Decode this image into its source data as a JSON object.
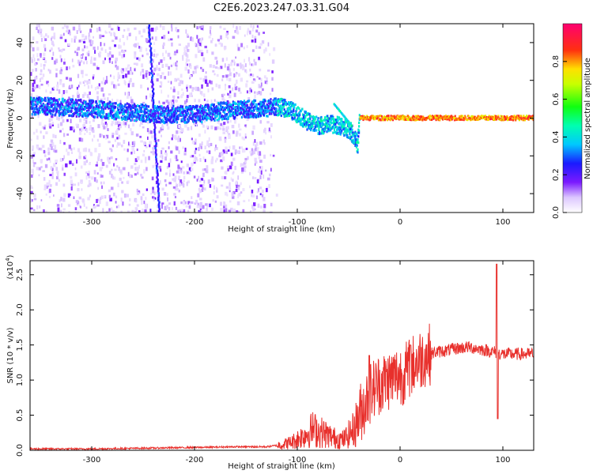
{
  "page_title": "C2E6.2023.247.03.31.G04",
  "chart_data": [
    {
      "type": "heatmap",
      "panel": "spectrogram",
      "xlabel": "Height of straight line (km)",
      "ylabel": "Frequency (Hz)",
      "xlim": [
        -360,
        130
      ],
      "ylim": [
        -50,
        50
      ],
      "xticks": [
        -300,
        -200,
        -100,
        0,
        100
      ],
      "yticks": [
        -40,
        -20,
        0,
        20,
        40
      ],
      "colorbar": {
        "label": "Normalized spectral amplitude",
        "range": [
          0,
          1
        ],
        "ticks": [
          "0.0",
          "0.2",
          "0.4",
          "0.6",
          "0.8"
        ],
        "colormap": "rainbow (white-violet-blue-cyan-green-yellow-red-magenta)"
      },
      "ridge": [
        {
          "x": -340,
          "y": 6
        },
        {
          "x": -300,
          "y": 5
        },
        {
          "x": -260,
          "y": 3
        },
        {
          "x": -230,
          "y": 2
        },
        {
          "x": -200,
          "y": 2
        },
        {
          "x": -170,
          "y": 4
        },
        {
          "x": -140,
          "y": 5
        },
        {
          "x": -120,
          "y": 6
        },
        {
          "x": -110,
          "y": 5
        },
        {
          "x": -100,
          "y": 2
        },
        {
          "x": -90,
          "y": -2
        },
        {
          "x": -80,
          "y": -4
        },
        {
          "x": -70,
          "y": -3
        },
        {
          "x": -60,
          "y": -4
        },
        {
          "x": -50,
          "y": -6
        },
        {
          "x": -45,
          "y": -10
        },
        {
          "x": -42,
          "y": -14
        },
        {
          "x": -40,
          "y": 0
        },
        {
          "x": 0,
          "y": 0
        },
        {
          "x": 50,
          "y": 0
        },
        {
          "x": 100,
          "y": 0
        },
        {
          "x": 130,
          "y": 0
        }
      ],
      "features": [
        {
          "x": -240,
          "note": "vertical streak"
        },
        {
          "x": -65,
          "y": 8,
          "note": "branch"
        }
      ]
    },
    {
      "type": "line",
      "panel": "snr",
      "xlabel": "Height of straight line (km)",
      "ylabel": "SNR (10 * v/v)",
      "scale_label": "(x10",
      "scale_exp": "4",
      "scale_close": ")",
      "xlim": [
        -360,
        130
      ],
      "ylim": [
        0,
        2.7
      ],
      "xticks": [
        -300,
        -200,
        -100,
        0,
        100
      ],
      "yticks": [
        "0.0",
        "0.5",
        "1.0",
        "1.5",
        "2.0",
        "2.5"
      ],
      "color": "#e8302c",
      "series": [
        {
          "x": [
            -360,
            -300,
            -250,
            -200,
            -160,
            -130,
            -115,
            -105,
            -95,
            -85,
            -75,
            -65,
            -55,
            -45,
            -38,
            -32,
            -28,
            -20,
            -12,
            -5,
            5,
            15,
            25,
            35,
            45,
            55,
            65,
            75,
            85,
            92,
            96,
            100,
            110,
            120,
            130
          ],
          "y": [
            0.02,
            0.02,
            0.03,
            0.04,
            0.05,
            0.05,
            0.08,
            0.12,
            0.2,
            0.3,
            0.25,
            0.18,
            0.15,
            0.3,
            0.55,
            0.75,
            0.85,
            0.95,
            1.0,
            1.05,
            1.1,
            1.25,
            1.35,
            1.4,
            1.42,
            1.45,
            1.47,
            1.45,
            1.42,
            1.4,
            1.38,
            1.37,
            1.37,
            1.37,
            1.37
          ]
        }
      ],
      "peaks": [
        {
          "x": 94,
          "y": 2.65
        },
        {
          "x": 95,
          "y": 0.45
        },
        {
          "x": -30,
          "y": 1.35
        },
        {
          "x": 10,
          "y": 1.5
        }
      ]
    }
  ]
}
